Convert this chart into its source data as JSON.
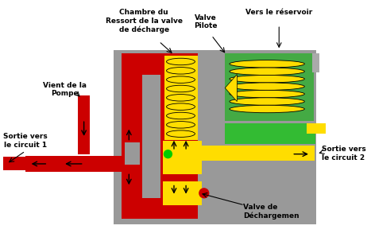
{
  "gray_body": "#999999",
  "red_color": "#cc0000",
  "yellow_color": "#ffdd00",
  "green_color": "#44aa44",
  "green_bright": "#00cc00",
  "green_light": "#33bb33",
  "labels": {
    "chambre": "Chambre du\nRessort de la valve\nde décharge",
    "valve_pilote": "Valve\nPilote",
    "vers_reservoir": "Vers le réservoir",
    "vient_pompe": "Vient de la\nPompe",
    "sortie1": "Sortie vers\nle circuit 1",
    "sortie2": "Sortie vers\nle circuit 2",
    "valve_decharge": "Valve de\nDéchargemen"
  },
  "figsize": [
    4.67,
    3.08
  ],
  "dpi": 100
}
